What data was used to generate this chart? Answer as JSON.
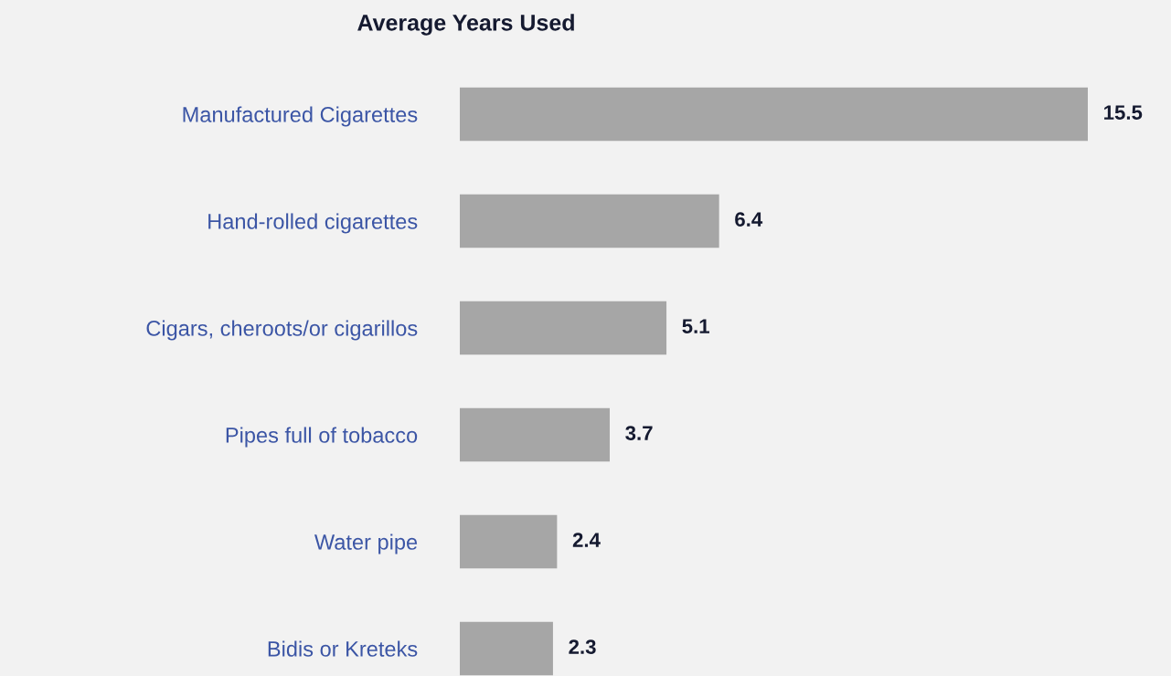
{
  "chart_data": {
    "type": "bar",
    "orientation": "horizontal",
    "title": "Average Years Used",
    "categories": [
      "Manufactured Cigarettes",
      "Hand-rolled cigarettes",
      "Cigars, cheroots/or cigarillos",
      "Pipes full of tobacco",
      "Water pipe",
      "Bidis or Kreteks"
    ],
    "values": [
      15.5,
      6.4,
      5.1,
      3.7,
      2.4,
      2.3
    ],
    "color": "#a6a6a6",
    "data_labels": true,
    "grid": false,
    "legend": false
  }
}
